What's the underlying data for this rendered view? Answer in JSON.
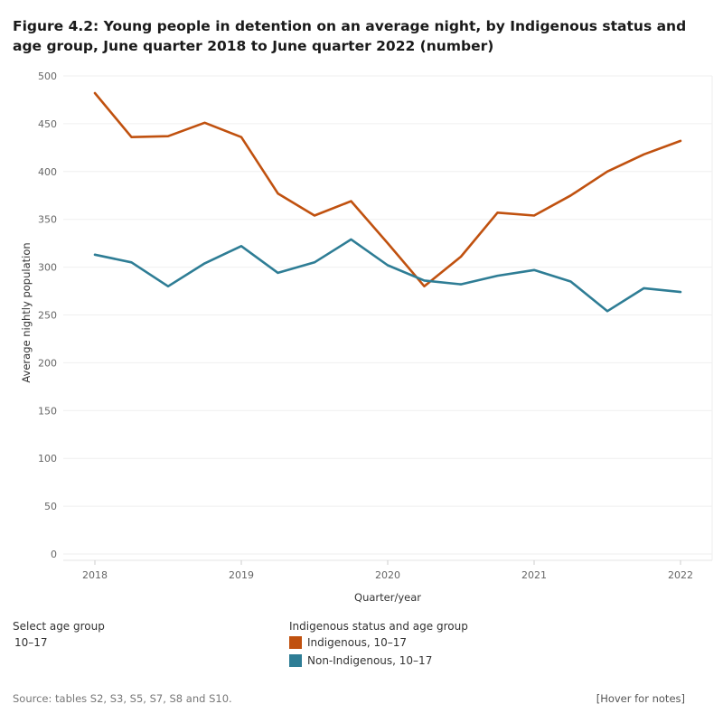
{
  "title": "Figure 4.2: Young people in detention on an average night, by Indigenous status and age group, June quarter 2018 to June quarter 2022 (number)",
  "filter": {
    "label": "Select age group",
    "value": "10–17"
  },
  "legend": {
    "title": "Indigenous status and age group",
    "items": [
      {
        "label": "Indigenous, 10–17",
        "color": "#c0510f"
      },
      {
        "label": "Non-Indigenous, 10–17",
        "color": "#2e7d95"
      }
    ]
  },
  "source": "Source: tables S2, S3, S5, S7, S8 and S10.",
  "notes_link": "[Hover for notes]",
  "chart_data": {
    "type": "line",
    "xlabel": "Quarter/year",
    "ylabel": "Average nightly population",
    "ylim": [
      0,
      500
    ],
    "yticks": [
      0,
      50,
      100,
      150,
      200,
      250,
      300,
      350,
      400,
      450,
      500
    ],
    "xticks": [
      {
        "label": "2018",
        "index": 0
      },
      {
        "label": "2019",
        "index": 4
      },
      {
        "label": "2020",
        "index": 8
      },
      {
        "label": "2021",
        "index": 12
      },
      {
        "label": "2022",
        "index": 16
      }
    ],
    "x": [
      "Jun 2018",
      "Sep 2018",
      "Dec 2018",
      "Mar 2019",
      "Jun 2019",
      "Sep 2019",
      "Dec 2019",
      "Mar 2020",
      "Jun 2020",
      "Sep 2020",
      "Dec 2020",
      "Mar 2021",
      "Jun 2021",
      "Sep 2021",
      "Dec 2021",
      "Mar 2022",
      "Jun 2022"
    ],
    "series": [
      {
        "name": "Indigenous, 10–17",
        "color": "#c0510f",
        "values": [
          482,
          436,
          437,
          451,
          436,
          377,
          354,
          369,
          325,
          280,
          311,
          357,
          354,
          375,
          400,
          418,
          432
        ]
      },
      {
        "name": "Non-Indigenous, 10–17",
        "color": "#2e7d95",
        "values": [
          313,
          305,
          280,
          304,
          322,
          294,
          305,
          329,
          302,
          286,
          282,
          291,
          297,
          285,
          254,
          278,
          274
        ]
      }
    ],
    "grid": true
  }
}
